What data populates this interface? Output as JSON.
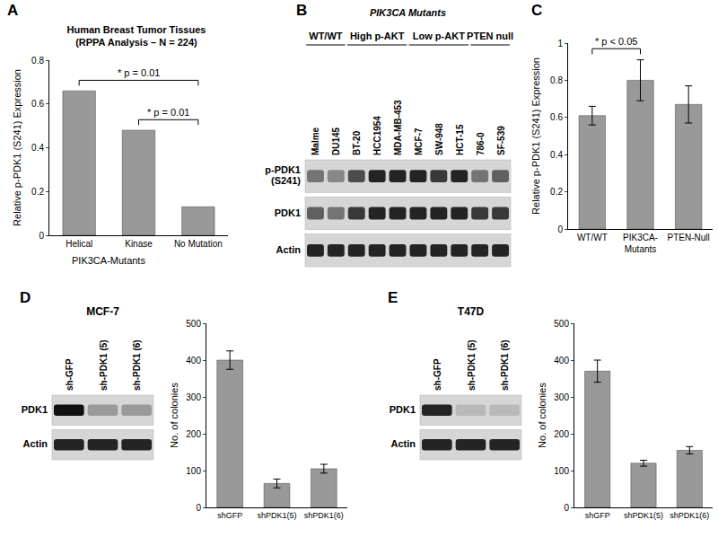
{
  "chart_data": [
    {
      "panel": "A",
      "type": "bar",
      "title": "Human Breast Tumor Tissues",
      "subtitle": "(RPPA Analysis – N = 224)",
      "y_label": "Relative p-PDK1 (S241) Expression",
      "categories": [
        "Helical",
        "Kinase",
        "No Mutation"
      ],
      "category_groups": [
        {
          "label": "PIK3CA-Mutants",
          "categories": [
            "Helical",
            "Kinase"
          ]
        }
      ],
      "values": [
        0.66,
        0.48,
        0.13
      ],
      "color": "#999999",
      "ylim": [
        0,
        0.8
      ],
      "yticks": [
        0,
        0.2,
        0.4,
        0.6,
        0.8
      ],
      "grid": false,
      "comparisons": [
        {
          "from": "Helical",
          "to": "No Mutation",
          "label": "* p = 0.01"
        },
        {
          "from": "Kinase",
          "to": "No Mutation",
          "label": "* p = 0.01"
        }
      ]
    },
    {
      "panel": "C",
      "type": "bar",
      "y_label": "Relative p-PDK1 (S241) Expression",
      "categories": [
        "WT/WT",
        "PIK3CA-Mutants",
        "PTEN-Null"
      ],
      "values": [
        0.61,
        0.8,
        0.67
      ],
      "errors": [
        0.05,
        0.11,
        0.1
      ],
      "color": "#999999",
      "ylim": [
        0,
        1
      ],
      "yticks": [
        0,
        0.2,
        0.4,
        0.6,
        0.8,
        1
      ],
      "grid": false,
      "comparisons": [
        {
          "from": "WT/WT",
          "to": "PIK3CA-Mutants",
          "label": "* p < 0.05"
        }
      ]
    },
    {
      "panel": "D",
      "type": "bar",
      "y_label": "No. of colonies",
      "categories": [
        "shGFP",
        "shPDK1(5)",
        "shPDK1(6)"
      ],
      "values": [
        400,
        65,
        105
      ],
      "errors": [
        25,
        12,
        12
      ],
      "color": "#999999",
      "ylim": [
        0,
        500
      ],
      "yticks": [
        0,
        100,
        200,
        300,
        400,
        500
      ],
      "grid": false
    },
    {
      "panel": "E",
      "type": "bar",
      "y_label": "No. of colonies",
      "categories": [
        "shGFP",
        "shPDK1(5)",
        "shPDK1(6)"
      ],
      "values": [
        370,
        120,
        155
      ],
      "errors": [
        30,
        8,
        10
      ],
      "color": "#999999",
      "ylim": [
        0,
        500
      ],
      "yticks": [
        0,
        100,
        200,
        300,
        400,
        500
      ],
      "grid": false
    }
  ],
  "blots": [
    {
      "panel": "B",
      "groups": [
        {
          "label": "WT/WT",
          "lanes": [
            "Malme",
            "DU145"
          ]
        },
        {
          "label": "PIK3CA Mutants",
          "subgroups": [
            {
              "label": "High p-AKT",
              "lanes": [
                "BT-20",
                "HCC1954",
                "MDA-MB-453"
              ]
            },
            {
              "label": "Low p-AKT",
              "lanes": [
                "MCF-7",
                "SW-948",
                "HCT-15"
              ]
            }
          ]
        },
        {
          "label": "PTEN null",
          "lanes": [
            "786-0",
            "SF-539"
          ]
        }
      ],
      "rows": [
        {
          "label": "p-PDK1 (S241)",
          "intensities": [
            0.5,
            0.4,
            0.7,
            0.9,
            0.9,
            0.9,
            0.8,
            0.9,
            0.5,
            0.6
          ]
        },
        {
          "label": "PDK1",
          "intensities": [
            0.6,
            0.5,
            0.8,
            0.9,
            0.9,
            0.9,
            0.9,
            0.9,
            0.8,
            0.8
          ]
        },
        {
          "label": "Actin",
          "intensities": [
            0.9,
            0.9,
            0.9,
            0.9,
            0.9,
            0.9,
            0.9,
            0.9,
            0.9,
            0.9
          ]
        }
      ]
    },
    {
      "header": "MCF-7",
      "lanes": [
        "sh-GFP",
        "sh-PDK1 (5)",
        "sh-PDK1 (6)"
      ],
      "rows": [
        {
          "label": "PDK1",
          "intensities": [
            1,
            0.3,
            0.3
          ]
        },
        {
          "label": "Actin",
          "intensities": [
            0.9,
            0.9,
            0.9
          ]
        }
      ]
    },
    {
      "header": "T47D",
      "lanes": [
        "sh-GFP",
        "sh-PDK1 (5)",
        "sh-PDK1 (6)"
      ],
      "rows": [
        {
          "label": "PDK1",
          "intensities": [
            0.9,
            0.15,
            0.15
          ]
        },
        {
          "label": "Actin",
          "intensities": [
            0.9,
            0.9,
            0.9
          ]
        }
      ]
    }
  ]
}
